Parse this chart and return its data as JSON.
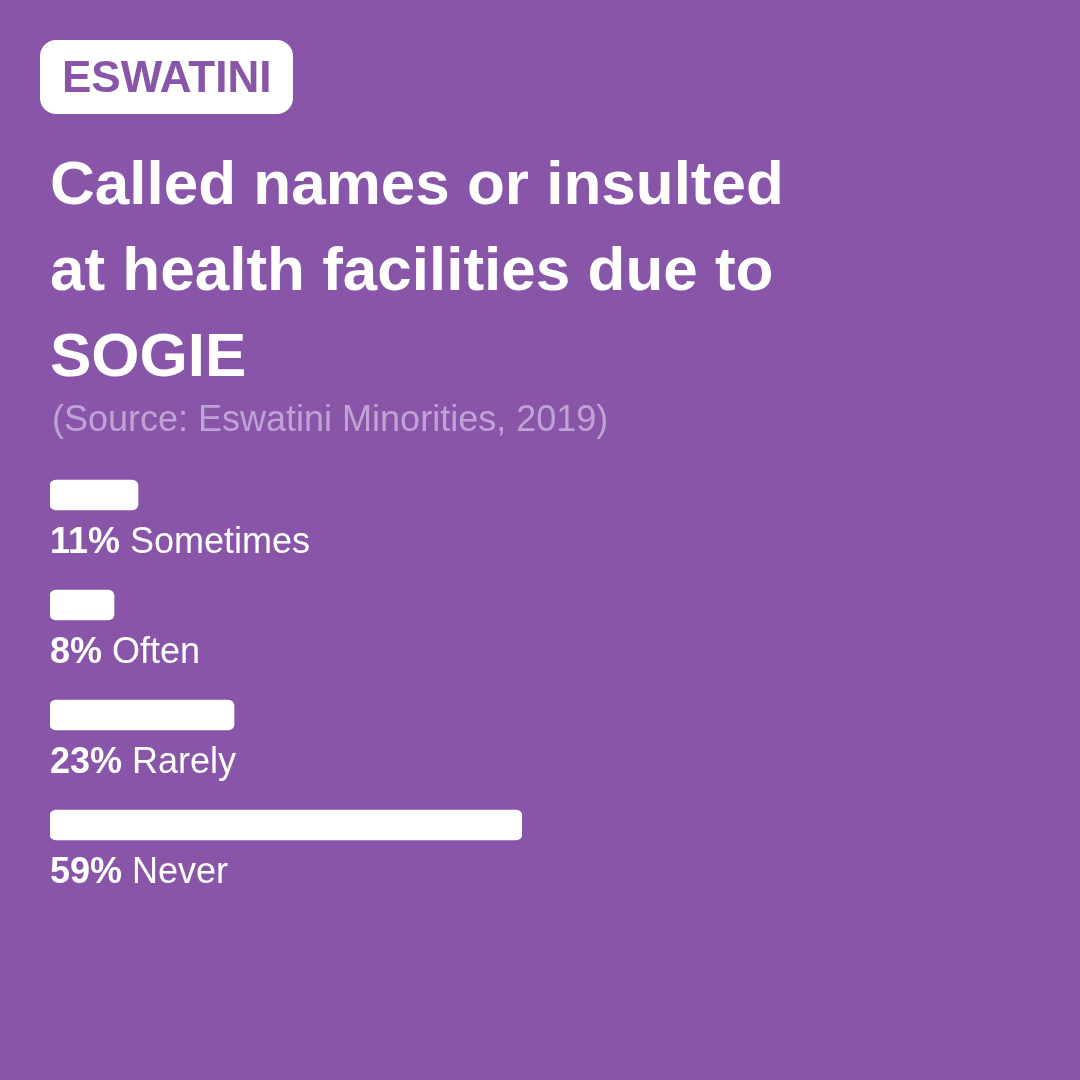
{
  "chart_data": {
    "type": "bar",
    "orientation": "horizontal",
    "subtitle": "ESWATINI",
    "title": "Called names or insulted at health facilities due to SOGIE",
    "annotations": [
      "(Source: Eswatini Minorities, 2019)"
    ],
    "categories": [
      "Sometimes",
      "Often",
      "Rarely",
      "Never"
    ],
    "values": [
      11,
      8,
      23,
      59
    ],
    "value_labels": [
      "11%",
      "8%",
      "23%",
      "59%"
    ],
    "color": "#ffffff"
  }
}
